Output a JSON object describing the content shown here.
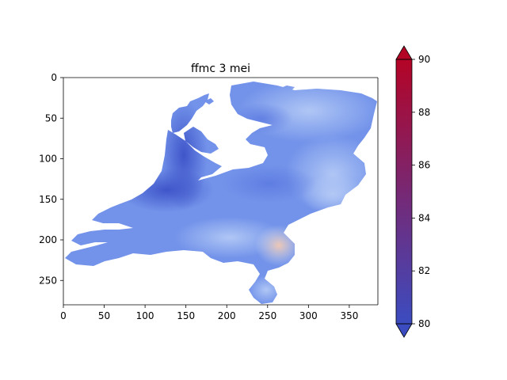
{
  "figure": {
    "title": "ffmc 3 mei"
  },
  "chart_data": {
    "type": "heatmap",
    "title": "ffmc 3 mei",
    "xlabel": "",
    "ylabel": "",
    "xlim": [
      0,
      385
    ],
    "ylim": [
      280,
      0
    ],
    "x_ticks": [
      0,
      50,
      100,
      150,
      200,
      250,
      300,
      350
    ],
    "y_ticks": [
      0,
      50,
      100,
      150,
      200,
      250
    ],
    "grid": false,
    "colorbar": {
      "label": "",
      "vmin": 80,
      "vmax": 90,
      "ticks": [
        80,
        82,
        84,
        86,
        88,
        90
      ],
      "extend": "both",
      "colormap": "coolwarm",
      "colors": [
        "#3b4cc0",
        "#6788ee",
        "#9abbff",
        "#c9d7f0",
        "#edd1c2",
        "#f7a889",
        "#e26952",
        "#b40426"
      ]
    },
    "map": {
      "region": "Netherlands",
      "masked_color": "#ffffff",
      "value_range_shown": [
        80.0,
        85.8
      ],
      "regions": [
        {
          "name": "north-holland peninsula",
          "approx_value": 80.4
        },
        {
          "name": "holland coast",
          "approx_value": 80.8
        },
        {
          "name": "central lowlands",
          "approx_value": 81.6
        },
        {
          "name": "frisian / groningen north",
          "approx_value": 82.2
        },
        {
          "name": "east (overijssel)",
          "approx_value": 83.0
        },
        {
          "name": "achterhoek / gelderland east",
          "approx_value": 84.2
        },
        {
          "name": "zeeland islands",
          "approx_value": 81.8
        },
        {
          "name": "north brabant",
          "approx_value": 83.4
        },
        {
          "name": "limburg hotspot",
          "approx_value": 85.6
        },
        {
          "name": "south limburg",
          "approx_value": 84.6
        }
      ]
    }
  }
}
